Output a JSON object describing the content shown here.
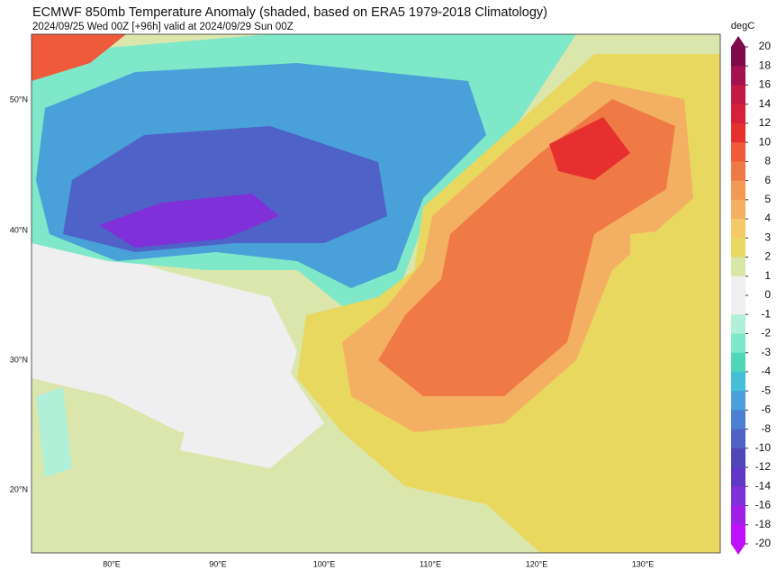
{
  "header": {
    "title": "ECMWF 850mb Temperature Anomaly (shaded, based on ERA5 1979-2018 Climatology)",
    "subtitle": "2024/09/25 Wed 00Z [+96h] valid at 2024/09/29 Sun 00Z"
  },
  "map": {
    "lat_labels": [
      "50°N",
      "40°N",
      "30°N",
      "20°N"
    ],
    "lon_labels": [
      "80°E",
      "90°E",
      "100°E",
      "110°E",
      "120°E",
      "130°E"
    ]
  },
  "colorbar": {
    "unit": "degC",
    "ticks": [
      20,
      18,
      16,
      14,
      12,
      10,
      8,
      6,
      5,
      4,
      3,
      2,
      1,
      0,
      -1,
      -2,
      -3,
      -4,
      -5,
      -6,
      -8,
      -10,
      -12,
      -14,
      -16,
      -18,
      -20
    ],
    "colors": [
      "#7d0a4a",
      "#a3114f",
      "#c21a45",
      "#d6213a",
      "#e6302f",
      "#ee5a3a",
      "#f07a45",
      "#f29a55",
      "#f4b062",
      "#f5c868",
      "#e8d860",
      "#d8e6a8",
      "#f0f0f0",
      "#f0f0f0",
      "#b0f0d8",
      "#7ee8c8",
      "#4fd8b8",
      "#45c0d8",
      "#4aa0d8",
      "#4d80d0",
      "#4e62c8",
      "#5048b8",
      "#6038c8",
      "#8030d8",
      "#a020e8",
      "#c010f8"
    ]
  }
}
